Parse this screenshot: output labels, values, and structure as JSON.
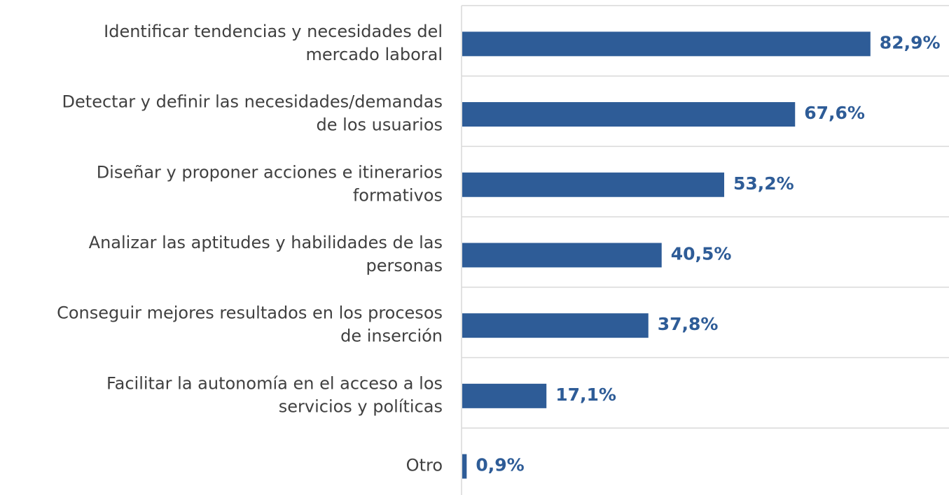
{
  "chart_data": {
    "type": "bar",
    "orientation": "horizontal",
    "categories": [
      "Identificar tendencias y necesidades del\nmercado laboral",
      "Detectar y definir las necesidades/demandas\nde los usuarios",
      "Diseñar y proponer acciones e itinerarios\nformativos",
      "Analizar las aptitudes y habilidades de las\npersonas",
      "Conseguir mejores resultados en los procesos\nde inserción",
      "Facilitar la autonomía en el acceso a los\nservicios y políticas",
      "Otro"
    ],
    "values": [
      82.9,
      67.6,
      53.2,
      40.5,
      37.8,
      17.1,
      0.9
    ],
    "value_labels": [
      "82,9%",
      "67,6%",
      "53,2%",
      "40,5%",
      "37,8%",
      "17,1%",
      "0,9%"
    ],
    "color": "#2e5c97",
    "xlim": [
      0,
      99
    ]
  }
}
